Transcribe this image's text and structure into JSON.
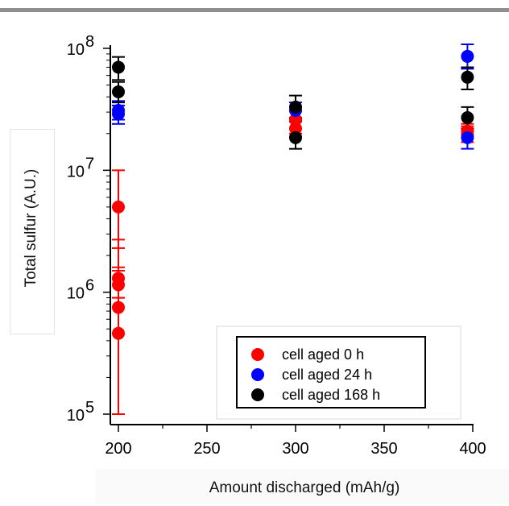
{
  "chart_data": {
    "type": "scatter",
    "title": "",
    "xlabel": "Amount discharged (mAh/g)",
    "ylabel": "Total sulfur (A.U.)",
    "xlim": [
      195,
      400
    ],
    "ylim": [
      100000,
      100000000
    ],
    "yscale": "log",
    "x_ticks": [
      200,
      250,
      300,
      350,
      400
    ],
    "x_tick_labels": [
      "200",
      "250",
      "300",
      "350",
      "400"
    ],
    "y_ticks": [
      {
        "value": 100000,
        "base": "10",
        "exp": "5"
      },
      {
        "value": 1000000,
        "base": "10",
        "exp": "6"
      },
      {
        "value": 10000000,
        "base": "10",
        "exp": "7"
      },
      {
        "value": 100000000,
        "base": "10",
        "exp": "8"
      }
    ],
    "grid": false,
    "legend_position": "bottom-right",
    "series": [
      {
        "name": "cell aged 0 h",
        "color": "#ff0000",
        "points": [
          {
            "x": 200,
            "y": 5000000,
            "lo": 100000,
            "hi": 10000000
          },
          {
            "x": 200,
            "y": 1300000,
            "lo": 900000,
            "hi": 2700000
          },
          {
            "x": 200,
            "y": 1150000,
            "lo": 900000,
            "hi": 1600000
          },
          {
            "x": 200,
            "y": 750000,
            "lo": 100000,
            "hi": 2300000
          },
          {
            "x": 200,
            "y": 460000,
            "lo": 100000,
            "hi": 1500000
          },
          {
            "x": 300,
            "y": 26000000,
            "lo": 20000000,
            "hi": 31000000
          },
          {
            "x": 300,
            "y": 22000000,
            "lo": 19000000,
            "hi": 26000000
          },
          {
            "x": 397,
            "y": 21000000,
            "lo": 17000000,
            "hi": 24000000
          },
          {
            "x": 397,
            "y": 19500000,
            "lo": 17000000,
            "hi": 23000000
          }
        ]
      },
      {
        "name": "cell aged 24 h",
        "color": "#0000ff",
        "points": [
          {
            "x": 200,
            "y": 31000000,
            "lo": 26000000,
            "hi": 37000000
          },
          {
            "x": 200,
            "y": 29000000,
            "lo": 24000000,
            "hi": 34000000
          },
          {
            "x": 300,
            "y": 31000000,
            "lo": 25000000,
            "hi": 36000000
          },
          {
            "x": 397,
            "y": 86000000,
            "lo": 68000000,
            "hi": 108000000
          },
          {
            "x": 397,
            "y": 18500000,
            "lo": 15000000,
            "hi": 22000000
          }
        ]
      },
      {
        "name": "cell aged 168 h",
        "color": "#000000",
        "points": [
          {
            "x": 200,
            "y": 70000000,
            "lo": 55000000,
            "hi": 85000000
          },
          {
            "x": 200,
            "y": 44000000,
            "lo": 36000000,
            "hi": 53000000
          },
          {
            "x": 300,
            "y": 33000000,
            "lo": 27000000,
            "hi": 41000000
          },
          {
            "x": 300,
            "y": 18500000,
            "lo": 15000000,
            "hi": 22000000
          },
          {
            "x": 397,
            "y": 58000000,
            "lo": 46000000,
            "hi": 70000000
          },
          {
            "x": 397,
            "y": 27000000,
            "lo": 22000000,
            "hi": 33000000
          }
        ]
      }
    ]
  }
}
